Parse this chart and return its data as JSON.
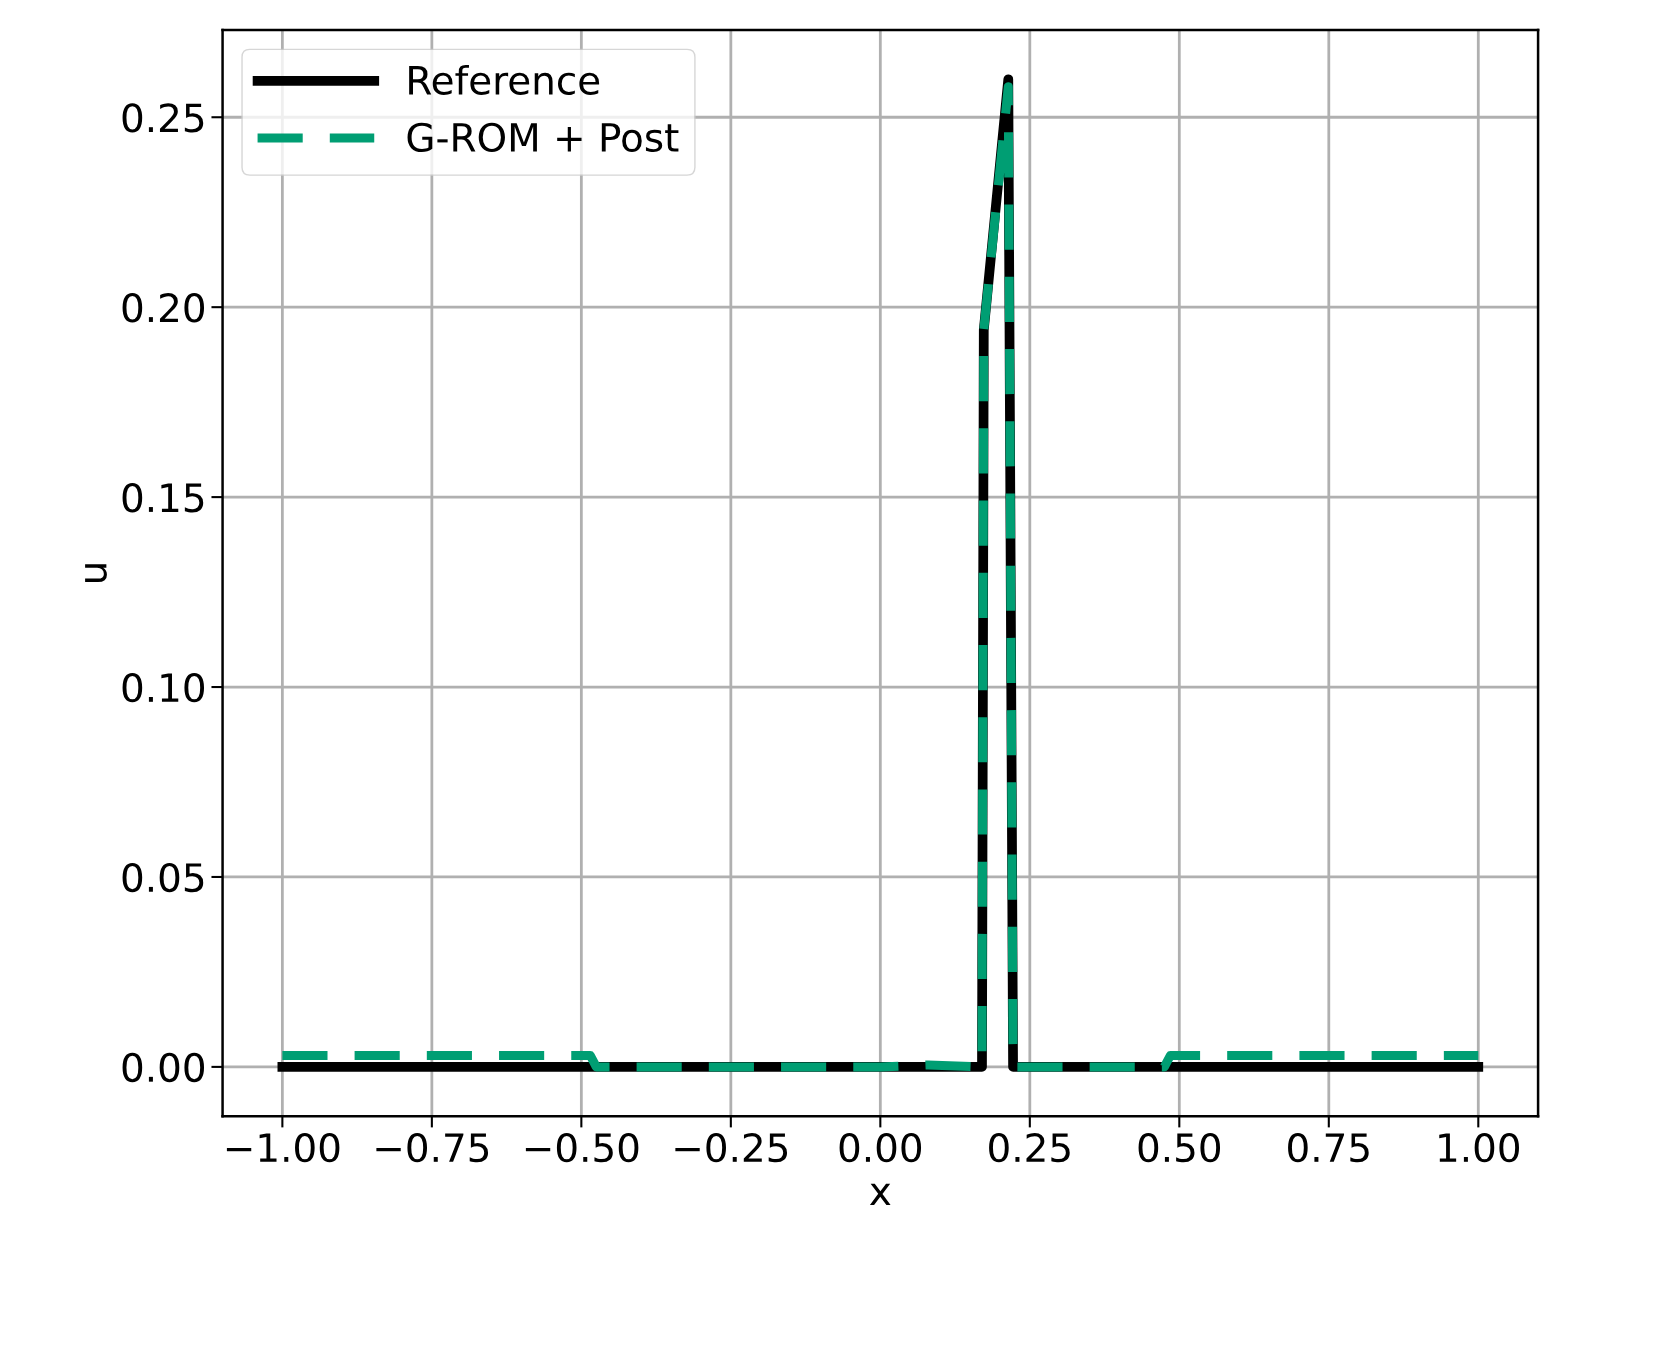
{
  "chart_data": {
    "type": "line",
    "xlabel": "x",
    "ylabel": "u",
    "xlim": [
      -1.1,
      1.1
    ],
    "xticks": [
      {
        "value": -1,
        "label": "−1.00"
      },
      {
        "value": -0.75,
        "label": "−0.75"
      },
      {
        "value": -0.5,
        "label": "−0.50"
      },
      {
        "value": -0.25,
        "label": "−0.25"
      },
      {
        "value": 0,
        "label": "0.00"
      },
      {
        "value": 0.25,
        "label": "0.25"
      },
      {
        "value": 0.5,
        "label": "0.50"
      },
      {
        "value": 0.75,
        "label": "0.75"
      },
      {
        "value": 1,
        "label": "1.00"
      }
    ],
    "ylim": [
      -0.013,
      0.273
    ],
    "yticks": [
      {
        "value": 0,
        "label": "0.00"
      },
      {
        "value": 0.05,
        "label": "0.05"
      },
      {
        "value": 0.1,
        "label": "0.10"
      },
      {
        "value": 0.15,
        "label": "0.15"
      },
      {
        "value": 0.2,
        "label": "0.20"
      },
      {
        "value": 0.25,
        "label": "0.25"
      }
    ],
    "grid": true,
    "legend": "top left",
    "series": [
      {
        "name": "Reference",
        "color": "#000000",
        "line_style": "solid",
        "x": [
          -1.0,
          0.17,
          0.173,
          0.214,
          0.222,
          1.0
        ],
        "values": [
          0.0,
          0.0,
          0.194,
          0.26,
          0.0,
          0.0
        ]
      },
      {
        "name": "G-ROM + Post",
        "color": "#009e73",
        "line_style": "dashed",
        "x": [
          -1.0,
          -0.485,
          -0.475,
          0.0,
          0.08,
          0.17,
          0.173,
          0.214,
          0.222,
          0.475,
          0.485,
          1.0
        ],
        "values": [
          0.003,
          0.003,
          0.0,
          0.0,
          0.0005,
          0.0,
          0.194,
          0.258,
          0.0,
          0.0,
          0.003,
          0.003
        ]
      }
    ]
  }
}
